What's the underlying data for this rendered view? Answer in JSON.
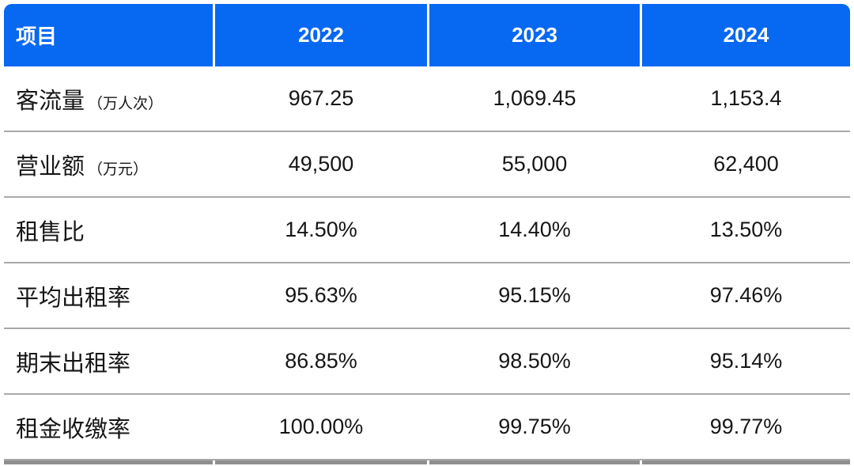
{
  "table": {
    "columns": [
      "项目",
      "2022",
      "2023",
      "2024"
    ],
    "rows": [
      {
        "label": "客流量",
        "unit": "（万人次）",
        "values": [
          "967.25",
          "1,069.45",
          "1,153.4"
        ]
      },
      {
        "label": "营业额",
        "unit": "（万元）",
        "values": [
          "49,500",
          "55,000",
          "62,400"
        ]
      },
      {
        "label": "租售比",
        "unit": "",
        "values": [
          "14.50%",
          "14.40%",
          "13.50%"
        ]
      },
      {
        "label": "平均出租率",
        "unit": "",
        "values": [
          "95.63%",
          "95.15%",
          "97.46%"
        ]
      },
      {
        "label": "期末出租率",
        "unit": "",
        "values": [
          "86.85%",
          "98.50%",
          "95.14%"
        ]
      },
      {
        "label": "租金收缴率",
        "unit": "",
        "values": [
          "100.00%",
          "99.75%",
          "99.77%"
        ]
      }
    ]
  },
  "colors": {
    "header-bg": "#0768F2",
    "header-text": "#FFFFFF",
    "body-text": "#161616",
    "row-divider": "#A9A9A9",
    "bottom-border": "#8F8F8F",
    "background": "#FFFFFF"
  },
  "chart_data": {
    "type": "table",
    "title": "",
    "columns": [
      "项目",
      "2022",
      "2023",
      "2024"
    ],
    "rows": [
      [
        "客流量（万人次）",
        967.25,
        1069.45,
        1153.4
      ],
      [
        "营业额（万元）",
        49500,
        55000,
        62400
      ],
      [
        "租售比",
        "14.50%",
        "14.40%",
        "13.50%"
      ],
      [
        "平均出租率",
        "95.63%",
        "95.15%",
        "97.46%"
      ],
      [
        "期末出租率",
        "86.85%",
        "98.50%",
        "95.14%"
      ],
      [
        "租金收缴率",
        "100.00%",
        "99.75%",
        "99.77%"
      ]
    ]
  }
}
